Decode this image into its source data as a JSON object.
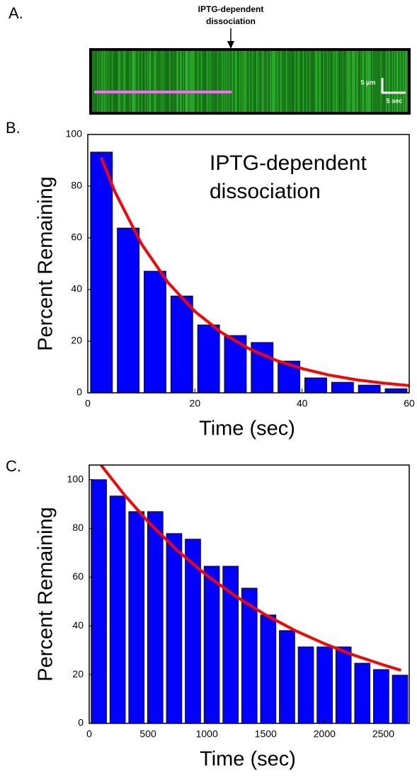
{
  "panel_labels": [
    "A.",
    "B.",
    "C."
  ],
  "kymograph": {
    "annotation": [
      "IPTG-dependent",
      "dissociation"
    ],
    "scale_y": "5 µm",
    "scale_x": "5 sec"
  },
  "chart_data": [
    {
      "type": "histogram",
      "annotation": [
        "IPTG-dependent",
        "dissociation"
      ],
      "xlabel": "Time (sec)",
      "ylabel": "Percent Remaining",
      "bins": [
        0,
        5,
        10,
        15,
        20,
        25,
        30,
        35,
        40,
        45,
        50,
        55,
        60
      ],
      "values": [
        93.2,
        63.8,
        47.1,
        37.5,
        26.3,
        22.2,
        19.5,
        12.3,
        5.8,
        4.1,
        3,
        1.6
      ],
      "color": "#0000ff",
      "fit": {
        "x": [
          2.5,
          5,
          10,
          15,
          20,
          25,
          30,
          35,
          40,
          45,
          50,
          55,
          60
        ],
        "values": [
          91.1,
          78.1,
          57.7,
          42.6,
          31.5,
          23.3,
          17.2,
          12.7,
          9.4,
          6.9,
          5.1,
          3.8,
          2.8
        ],
        "color": "#ff0000"
      },
      "xlim": [
        0,
        60
      ],
      "ylim": [
        0,
        100
      ],
      "xticks": [
        0,
        20,
        40,
        60
      ],
      "yticks": [
        0,
        20,
        40,
        60,
        80,
        100
      ]
    },
    {
      "type": "histogram",
      "xlabel": "Time (sec)",
      "ylabel": "Percent Remaining",
      "bins": [
        0,
        160,
        320,
        480,
        640,
        800,
        960,
        1120,
        1280,
        1440,
        1600,
        1760,
        1920,
        2080,
        2240,
        2400,
        2560,
        2720
      ],
      "values": [
        100,
        93.3,
        86.9,
        86.9,
        77.9,
        75.6,
        64.5,
        64.5,
        55.5,
        44.5,
        38.1,
        31.4,
        31.4,
        31.4,
        24.7,
        22.1,
        19.8
      ],
      "color": "#0000ff",
      "fit": {
        "x": [
          100,
          300,
          500,
          750,
          1000,
          1250,
          1500,
          1750,
          2000,
          2250,
          2500,
          2650
        ],
        "values": [
          106,
          93.7,
          82.8,
          70.9,
          60.7,
          52,
          44.5,
          38.1,
          32.7,
          28,
          24,
          21.8
        ],
        "color": "#ff0000"
      },
      "xlim": [
        0,
        2720
      ],
      "ylim": [
        0,
        106
      ],
      "xticks": [
        0,
        500,
        1000,
        1500,
        2000,
        2500
      ],
      "yticks": [
        0,
        20,
        40,
        60,
        80,
        100
      ]
    }
  ]
}
